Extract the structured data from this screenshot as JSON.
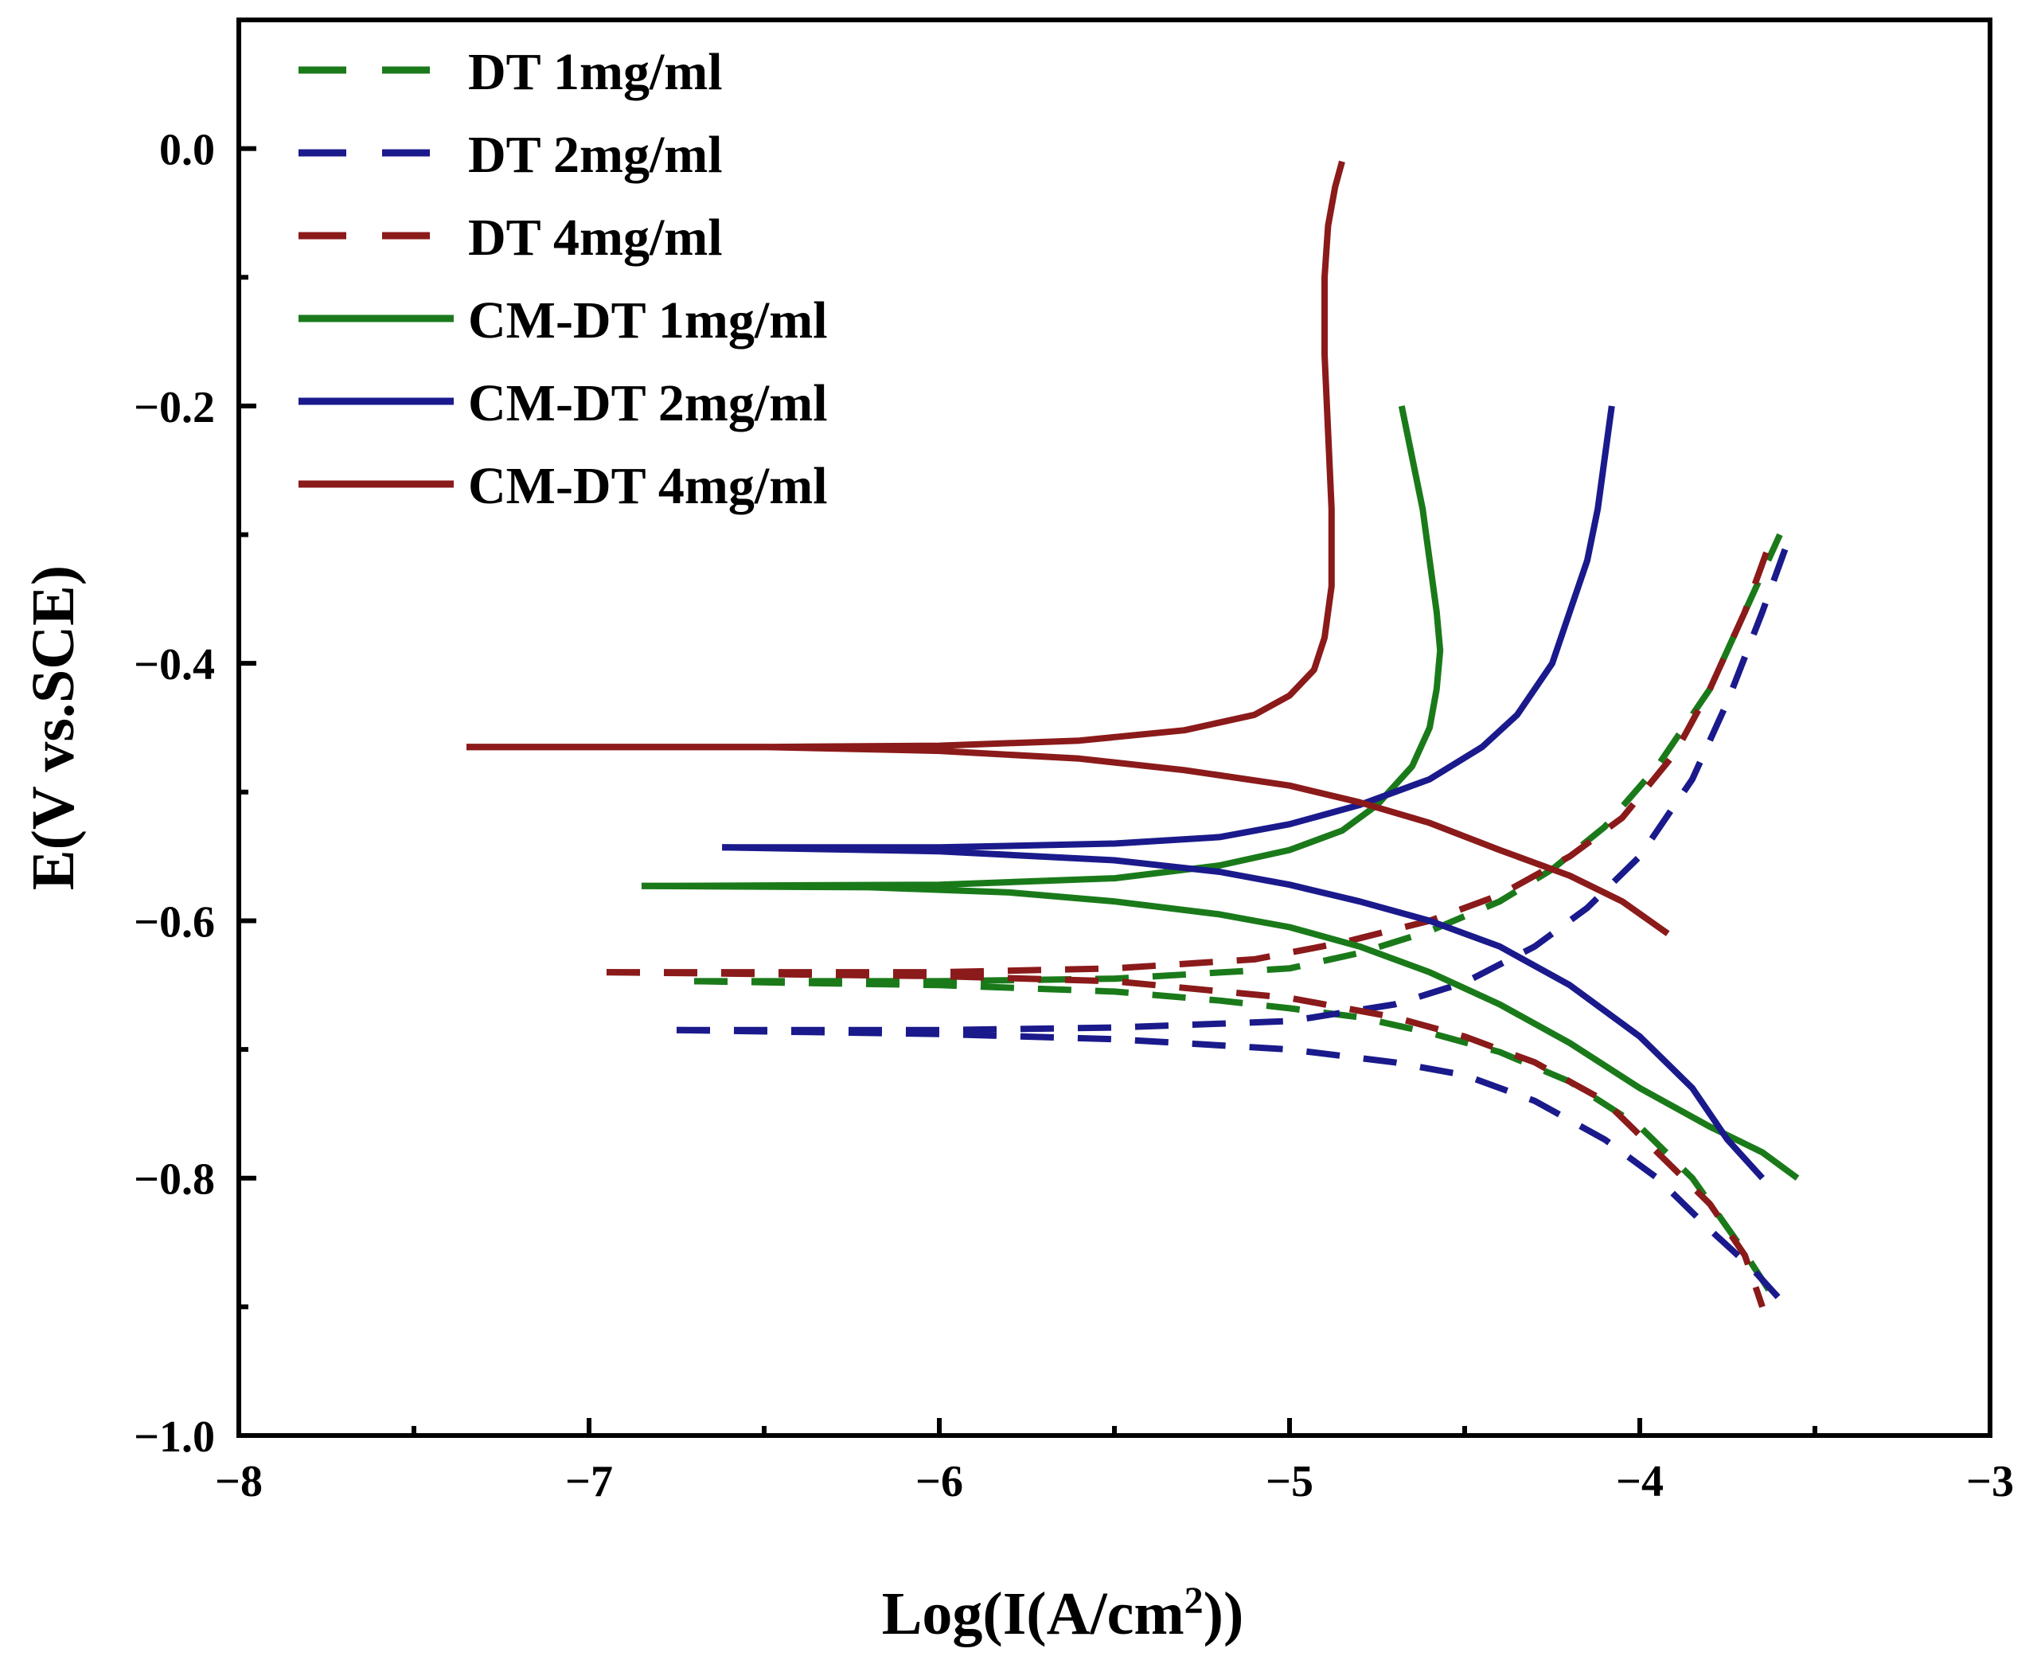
{
  "chart_data": {
    "type": "line",
    "title": "",
    "xlabel_prefix": "Log(I(A/cm",
    "xlabel_sup": "2",
    "xlabel_suffix": "))",
    "ylabel": "E(V vs.SCE)",
    "xlim": [
      -8,
      -3
    ],
    "ylim": [
      -1.0,
      0.1
    ],
    "xticks": [
      -8,
      -7,
      -6,
      -5,
      -4,
      -3
    ],
    "xtick_labels": [
      "−8",
      "−7",
      "−6",
      "−5",
      "−4",
      "−3"
    ],
    "yticks": [
      0.0,
      -0.2,
      -0.4,
      -0.6,
      -0.8,
      -1.0
    ],
    "ytick_labels": [
      "0.0",
      "−0.2",
      "−0.4",
      "−0.6",
      "−0.8",
      "−1.0"
    ],
    "grid": false,
    "legend_position": "top-left",
    "series": [
      {
        "name": "DT 1mg/ml",
        "color": "#1a7a1a",
        "style": "dashed",
        "anodic": [
          [
            -6.7,
            -0.647
          ],
          [
            -6.0,
            -0.647
          ],
          [
            -5.5,
            -0.645
          ],
          [
            -5.0,
            -0.637
          ],
          [
            -4.8,
            -0.625
          ],
          [
            -4.6,
            -0.608
          ],
          [
            -4.4,
            -0.585
          ],
          [
            -4.25,
            -0.56
          ],
          [
            -4.1,
            -0.527
          ],
          [
            -3.95,
            -0.48
          ],
          [
            -3.8,
            -0.42
          ],
          [
            -3.7,
            -0.36
          ],
          [
            -3.6,
            -0.3
          ]
        ],
        "cathodic": [
          [
            -6.7,
            -0.647
          ],
          [
            -6.0,
            -0.65
          ],
          [
            -5.5,
            -0.655
          ],
          [
            -5.2,
            -0.662
          ],
          [
            -5.0,
            -0.668
          ],
          [
            -4.8,
            -0.675
          ],
          [
            -4.6,
            -0.687
          ],
          [
            -4.4,
            -0.702
          ],
          [
            -4.2,
            -0.725
          ],
          [
            -4.0,
            -0.76
          ],
          [
            -3.85,
            -0.8
          ],
          [
            -3.72,
            -0.85
          ],
          [
            -3.6,
            -0.9
          ]
        ]
      },
      {
        "name": "DT 2mg/ml",
        "color": "#1a1a8c",
        "style": "dashed",
        "anodic": [
          [
            -6.75,
            -0.685
          ],
          [
            -6.0,
            -0.685
          ],
          [
            -5.5,
            -0.683
          ],
          [
            -5.0,
            -0.678
          ],
          [
            -4.7,
            -0.665
          ],
          [
            -4.5,
            -0.648
          ],
          [
            -4.3,
            -0.62
          ],
          [
            -4.15,
            -0.59
          ],
          [
            -4.0,
            -0.55
          ],
          [
            -3.85,
            -0.49
          ],
          [
            -3.75,
            -0.43
          ],
          [
            -3.65,
            -0.36
          ],
          [
            -3.57,
            -0.3
          ]
        ],
        "cathodic": [
          [
            -6.75,
            -0.685
          ],
          [
            -6.0,
            -0.688
          ],
          [
            -5.5,
            -0.692
          ],
          [
            -5.0,
            -0.7
          ],
          [
            -4.7,
            -0.71
          ],
          [
            -4.5,
            -0.72
          ],
          [
            -4.3,
            -0.74
          ],
          [
            -4.1,
            -0.77
          ],
          [
            -3.95,
            -0.8
          ],
          [
            -3.8,
            -0.84
          ],
          [
            -3.68,
            -0.87
          ],
          [
            -3.58,
            -0.9
          ]
        ]
      },
      {
        "name": "DT 4mg/ml",
        "color": "#8b1a1a",
        "style": "dashed",
        "anodic": [
          [
            -6.95,
            -0.64
          ],
          [
            -6.0,
            -0.64
          ],
          [
            -5.5,
            -0.637
          ],
          [
            -5.1,
            -0.63
          ],
          [
            -4.85,
            -0.617
          ],
          [
            -4.6,
            -0.6
          ],
          [
            -4.4,
            -0.58
          ],
          [
            -4.2,
            -0.55
          ],
          [
            -4.05,
            -0.52
          ],
          [
            -3.9,
            -0.47
          ],
          [
            -3.8,
            -0.42
          ],
          [
            -3.7,
            -0.36
          ],
          [
            -3.62,
            -0.3
          ]
        ],
        "cathodic": [
          [
            -6.95,
            -0.64
          ],
          [
            -6.0,
            -0.643
          ],
          [
            -5.5,
            -0.647
          ],
          [
            -5.0,
            -0.66
          ],
          [
            -4.7,
            -0.675
          ],
          [
            -4.5,
            -0.69
          ],
          [
            -4.3,
            -0.71
          ],
          [
            -4.1,
            -0.74
          ],
          [
            -3.95,
            -0.78
          ],
          [
            -3.8,
            -0.82
          ],
          [
            -3.7,
            -0.86
          ],
          [
            -3.65,
            -0.9
          ]
        ]
      },
      {
        "name": "CM-DT 1mg/ml",
        "color": "#1a7a1a",
        "style": "solid",
        "anodic": [
          [
            -6.85,
            -0.573
          ],
          [
            -6.0,
            -0.572
          ],
          [
            -5.5,
            -0.567
          ],
          [
            -5.2,
            -0.557
          ],
          [
            -5.0,
            -0.545
          ],
          [
            -4.85,
            -0.53
          ],
          [
            -4.75,
            -0.51
          ],
          [
            -4.65,
            -0.48
          ],
          [
            -4.6,
            -0.45
          ],
          [
            -4.58,
            -0.42
          ],
          [
            -4.57,
            -0.39
          ],
          [
            -4.58,
            -0.36
          ],
          [
            -4.6,
            -0.32
          ],
          [
            -4.62,
            -0.28
          ],
          [
            -4.65,
            -0.24
          ],
          [
            -4.68,
            -0.2
          ]
        ],
        "cathodic": [
          [
            -6.85,
            -0.573
          ],
          [
            -6.2,
            -0.574
          ],
          [
            -5.8,
            -0.578
          ],
          [
            -5.5,
            -0.585
          ],
          [
            -5.2,
            -0.595
          ],
          [
            -5.0,
            -0.605
          ],
          [
            -4.8,
            -0.62
          ],
          [
            -4.6,
            -0.64
          ],
          [
            -4.4,
            -0.665
          ],
          [
            -4.2,
            -0.695
          ],
          [
            -4.0,
            -0.73
          ],
          [
            -3.8,
            -0.76
          ],
          [
            -3.65,
            -0.78
          ],
          [
            -3.55,
            -0.8
          ]
        ]
      },
      {
        "name": "CM-DT 2mg/ml",
        "color": "#1a1a8c",
        "style": "solid",
        "anodic": [
          [
            -6.62,
            -0.543
          ],
          [
            -6.0,
            -0.543
          ],
          [
            -5.5,
            -0.54
          ],
          [
            -5.2,
            -0.535
          ],
          [
            -5.0,
            -0.525
          ],
          [
            -4.8,
            -0.51
          ],
          [
            -4.6,
            -0.49
          ],
          [
            -4.45,
            -0.465
          ],
          [
            -4.35,
            -0.44
          ],
          [
            -4.25,
            -0.4
          ],
          [
            -4.2,
            -0.36
          ],
          [
            -4.15,
            -0.32
          ],
          [
            -4.12,
            -0.28
          ],
          [
            -4.1,
            -0.24
          ],
          [
            -4.08,
            -0.2
          ]
        ],
        "cathodic": [
          [
            -6.62,
            -0.543
          ],
          [
            -6.0,
            -0.546
          ],
          [
            -5.5,
            -0.553
          ],
          [
            -5.2,
            -0.562
          ],
          [
            -5.0,
            -0.572
          ],
          [
            -4.8,
            -0.585
          ],
          [
            -4.6,
            -0.6
          ],
          [
            -4.4,
            -0.62
          ],
          [
            -4.2,
            -0.65
          ],
          [
            -4.0,
            -0.69
          ],
          [
            -3.85,
            -0.73
          ],
          [
            -3.75,
            -0.77
          ],
          [
            -3.65,
            -0.8
          ]
        ]
      },
      {
        "name": "CM-DT 4mg/ml",
        "color": "#8b1a1a",
        "style": "solid",
        "anodic": [
          [
            -7.35,
            -0.465
          ],
          [
            -6.5,
            -0.465
          ],
          [
            -6.0,
            -0.464
          ],
          [
            -5.6,
            -0.46
          ],
          [
            -5.3,
            -0.452
          ],
          [
            -5.1,
            -0.44
          ],
          [
            -5.0,
            -0.425
          ],
          [
            -4.93,
            -0.405
          ],
          [
            -4.9,
            -0.38
          ],
          [
            -4.88,
            -0.34
          ],
          [
            -4.88,
            -0.28
          ],
          [
            -4.89,
            -0.22
          ],
          [
            -4.9,
            -0.16
          ],
          [
            -4.9,
            -0.1
          ],
          [
            -4.89,
            -0.06
          ],
          [
            -4.87,
            -0.03
          ],
          [
            -4.85,
            -0.01
          ]
        ],
        "cathodic": [
          [
            -7.35,
            -0.465
          ],
          [
            -6.5,
            -0.465
          ],
          [
            -6.0,
            -0.468
          ],
          [
            -5.6,
            -0.474
          ],
          [
            -5.3,
            -0.483
          ],
          [
            -5.0,
            -0.495
          ],
          [
            -4.8,
            -0.508
          ],
          [
            -4.6,
            -0.524
          ],
          [
            -4.4,
            -0.545
          ],
          [
            -4.2,
            -0.565
          ],
          [
            -4.05,
            -0.585
          ],
          [
            -3.92,
            -0.61
          ]
        ]
      }
    ]
  }
}
